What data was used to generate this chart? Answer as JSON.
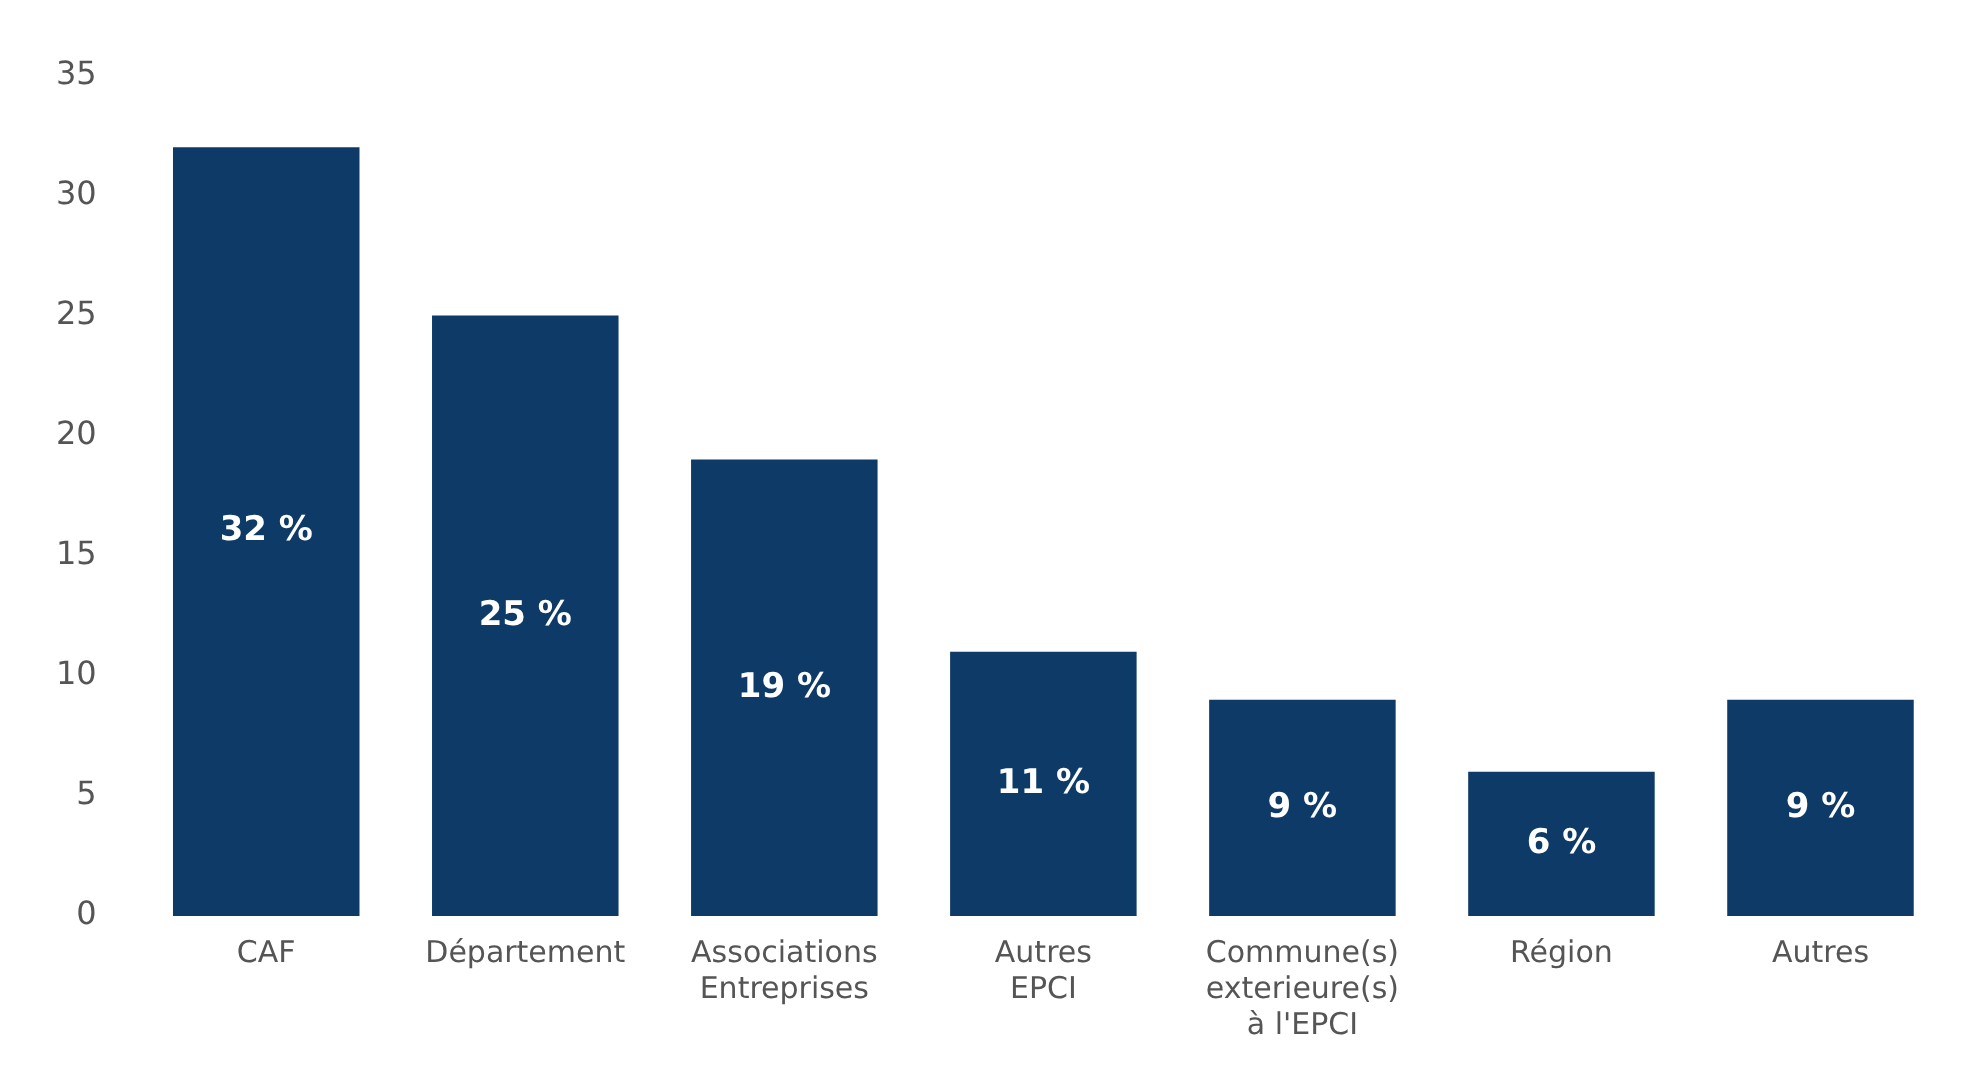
{
  "chart_data": {
    "type": "bar",
    "categories": [
      "CAF",
      "Département",
      "Associations\nEntreprises",
      "Autres\nEPCI",
      "Commune(s)\nexterieure(s)\nà l'EPCI",
      "Région",
      "Autres"
    ],
    "values": [
      32,
      25,
      19,
      11,
      9,
      6,
      9
    ],
    "value_labels": [
      "32 %",
      "25 %",
      "19 %",
      "11 %",
      "9 %",
      "6 %",
      "9 %"
    ],
    "color": "#0d3a66",
    "ylim": [
      0,
      35
    ],
    "yticks": [
      0,
      5,
      10,
      15,
      20,
      25,
      30,
      35
    ],
    "grid": false,
    "legend": false
  }
}
